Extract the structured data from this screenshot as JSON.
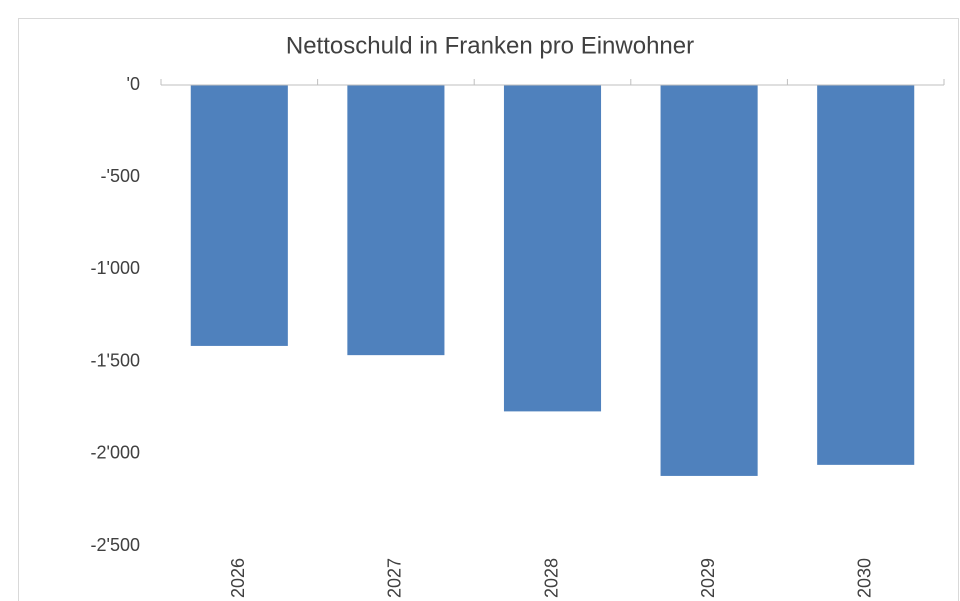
{
  "chart_data": {
    "type": "bar",
    "title": "Nettoschuld in Franken pro Einwohner",
    "categories": [
      "2026",
      "2027",
      "2028",
      "2029",
      "2030"
    ],
    "values": [
      -1415,
      -1465,
      -1770,
      -2120,
      -2060
    ],
    "color": "#4f81bd",
    "ylim": [
      -2500,
      0
    ],
    "yticks": [
      {
        "value": 0,
        "label": "'0"
      },
      {
        "value": -500,
        "label": "-'500"
      },
      {
        "value": -1000,
        "label": "-1'000"
      },
      {
        "value": -1500,
        "label": "-1'500"
      },
      {
        "value": -2000,
        "label": "-2'000"
      },
      {
        "value": -2500,
        "label": "-2'500"
      }
    ],
    "grid": false
  }
}
